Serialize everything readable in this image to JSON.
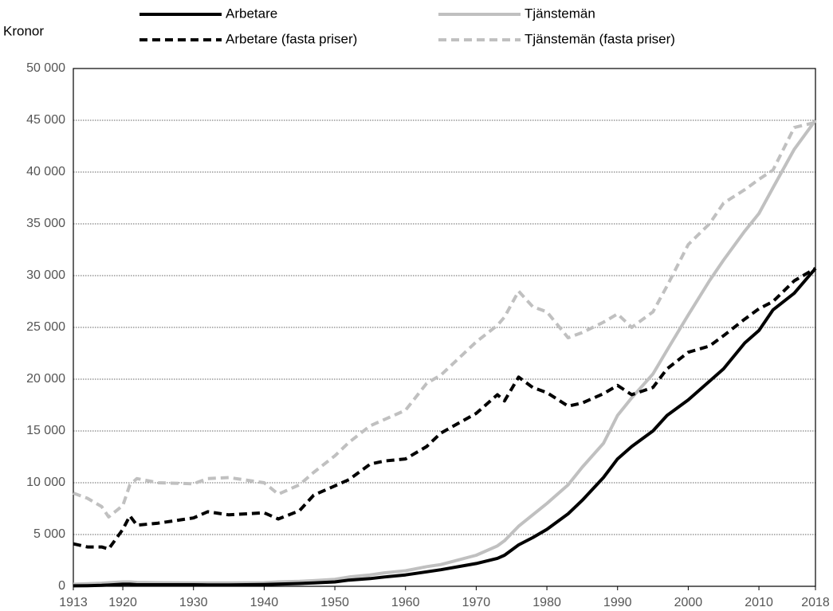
{
  "chart_data": {
    "type": "line",
    "y_label": "Kronor",
    "x": [
      1913,
      1915,
      1917,
      1918,
      1920,
      1921,
      1922,
      1925,
      1930,
      1932,
      1935,
      1940,
      1942,
      1945,
      1947,
      1950,
      1952,
      1955,
      1957,
      1960,
      1963,
      1965,
      1970,
      1973,
      1974,
      1976,
      1978,
      1980,
      1983,
      1985,
      1988,
      1990,
      1992,
      1995,
      1997,
      2000,
      2003,
      2005,
      2008,
      2010,
      2012,
      2015,
      2018
    ],
    "series": [
      {
        "name": "Arbetare",
        "color": "#000000",
        "style": "solid",
        "values": [
          50,
          60,
          90,
          120,
          200,
          200,
          150,
          150,
          150,
          140,
          140,
          170,
          210,
          270,
          330,
          420,
          600,
          750,
          900,
          1100,
          1400,
          1600,
          2200,
          2700,
          3000,
          4000,
          4700,
          5500,
          7000,
          8300,
          10500,
          12300,
          13500,
          15000,
          16500,
          18000,
          19800,
          21000,
          23500,
          24700,
          26700,
          28300,
          30700
        ]
      },
      {
        "name": "Tjänstemän",
        "color": "#c0c0c0",
        "style": "solid",
        "values": [
          200,
          250,
          300,
          350,
          420,
          420,
          380,
          350,
          330,
          320,
          320,
          350,
          420,
          480,
          550,
          680,
          900,
          1100,
          1300,
          1500,
          1900,
          2100,
          3000,
          3900,
          4400,
          5800,
          6900,
          8000,
          9800,
          11500,
          13800,
          16500,
          18200,
          20500,
          22800,
          26200,
          29500,
          31500,
          34300,
          36000,
          38500,
          42200,
          45000
        ]
      },
      {
        "name": "Arbetare (fasta priser)",
        "color": "#000000",
        "style": "dashed",
        "values": [
          4100,
          3800,
          3800,
          3600,
          5500,
          6800,
          5900,
          6100,
          6600,
          7200,
          6900,
          7100,
          6500,
          7300,
          8800,
          9700,
          10300,
          11800,
          12100,
          12300,
          13500,
          14800,
          16700,
          18500,
          17900,
          20200,
          19200,
          18700,
          17400,
          17700,
          18600,
          19400,
          18500,
          19200,
          21000,
          22600,
          23200,
          24200,
          25800,
          26800,
          27500,
          29500,
          30700
        ]
      },
      {
        "name": "Tjänstemän (fasta priser)",
        "color": "#c0c0c0",
        "style": "dashed",
        "values": [
          9000,
          8500,
          7700,
          6700,
          7800,
          9800,
          10400,
          10000,
          9900,
          10400,
          10500,
          10000,
          8900,
          9800,
          11000,
          12600,
          13900,
          15500,
          16100,
          17000,
          19600,
          20400,
          23600,
          25200,
          26000,
          28500,
          27000,
          26500,
          24000,
          24500,
          25500,
          26300,
          25000,
          26500,
          29000,
          33000,
          35000,
          37000,
          38300,
          39300,
          40200,
          44300,
          44800
        ]
      }
    ],
    "xlim": [
      1913,
      2018
    ],
    "xticks": [
      1913,
      1920,
      1930,
      1940,
      1950,
      1960,
      1970,
      1980,
      1990,
      2000,
      2010,
      2018
    ],
    "ylim": [
      0,
      50000
    ],
    "yticks": [
      0,
      {
        "value": 5000,
        "label": "5 000"
      },
      {
        "value": 10000,
        "label": "10 000"
      },
      {
        "value": 15000,
        "label": "15 000"
      },
      {
        "value": 20000,
        "label": "20 000"
      },
      {
        "value": 25000,
        "label": "25 000"
      },
      {
        "value": 30000,
        "label": "30 000"
      },
      {
        "value": 35000,
        "label": "35 000"
      },
      {
        "value": 40000,
        "label": "40 000"
      },
      {
        "value": 45000,
        "label": "45 000"
      },
      {
        "value": 50000,
        "label": "50 000"
      }
    ],
    "grid": true
  }
}
